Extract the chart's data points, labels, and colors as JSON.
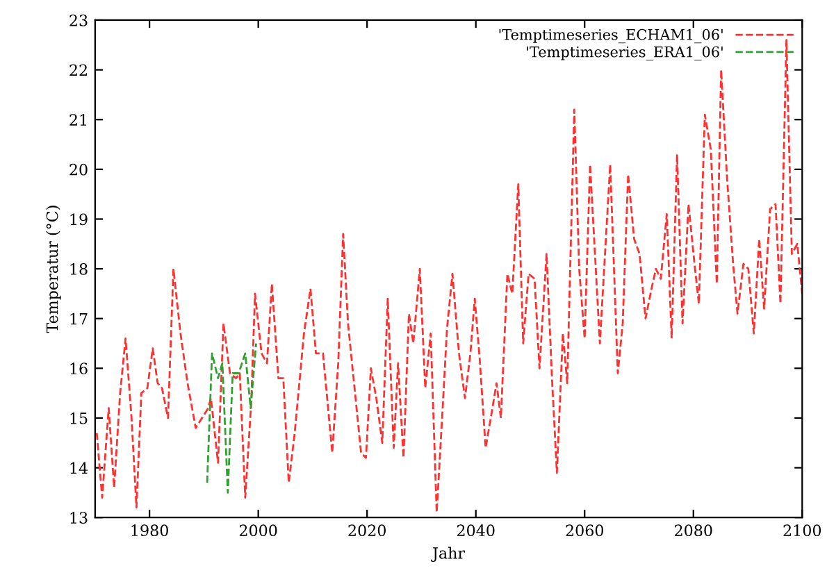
{
  "chart_data": {
    "type": "line",
    "xlabel": "Jahr",
    "ylabel": "Temperatur (°C)",
    "xlim": [
      1970,
      2100
    ],
    "ylim": [
      13,
      23
    ],
    "xticks": [
      1980,
      2000,
      2020,
      2040,
      2060,
      2080,
      2100
    ],
    "yticks": [
      13,
      14,
      15,
      16,
      17,
      18,
      19,
      20,
      21,
      22,
      23
    ],
    "grid": false,
    "legend": "top right",
    "line_style": "dashed",
    "marker": "none",
    "series": [
      {
        "name": "'Temptimeseries_ECHAM1_06'",
        "color": "#ff3030",
        "x": [
          1970.3,
          1971.3,
          1972.5,
          1973.5,
          1974.6,
          1975.6,
          1976.7,
          1977.6,
          1978.5,
          1979.6,
          1980.6,
          1981.5,
          1982.3,
          1983.4,
          1984.4,
          1985.7,
          1987,
          1988.5,
          1990.8,
          1991.3,
          1992.6,
          1993.6,
          1994.8,
          1995.9,
          1996.6,
          1997.6,
          1998.7,
          1999.4,
          2000.6,
          2001.6,
          2002.5,
          2003.7,
          2004.6,
          2005.6,
          2006.7,
          2008.4,
          2009.6,
          2010.6,
          2011.9,
          2013.6,
          2014.7,
          2015.6,
          2016.5,
          2018.9,
          2019.8,
          2020.7,
          2021.7,
          2022.8,
          2023.8,
          2024.9,
          2025.7,
          2026.7,
          2027.7,
          2028.5,
          2029.7,
          2030.7,
          2031.7,
          2032.8,
          2033.9,
          2034.7,
          2035.7,
          2036.9,
          2038,
          2039,
          2039.8,
          2040.7,
          2041.8,
          2042.9,
          2043.8,
          2044.6,
          2045.8,
          2046.7,
          2047.8,
          2048.7,
          2049.7,
          2050.8,
          2051.7,
          2053,
          2054,
          2054.9,
          2056,
          2056.8,
          2058.1,
          2059,
          2060,
          2061,
          2062.8,
          2064.7,
          2066.1,
          2067,
          2068,
          2069.1,
          2070.1,
          2071.2,
          2072.3,
          2073.1,
          2074,
          2075.1,
          2076,
          2077,
          2078,
          2079.1,
          2080.2,
          2081,
          2082.1,
          2083.2,
          2084.3,
          2085.1,
          2086.2,
          2087.3,
          2088.1,
          2089.2,
          2090.1,
          2091.1,
          2092.1,
          2093,
          2094.1,
          2095.1,
          2096,
          2097.1,
          2098.1,
          2099.1,
          2100
        ],
        "values": [
          14.7,
          13.4,
          15.2,
          13.6,
          15.5,
          16.6,
          15.0,
          13.2,
          15.5,
          15.6,
          16.4,
          15.7,
          15.6,
          15.0,
          18.0,
          16.7,
          15.7,
          14.8,
          15.2,
          15.4,
          14.1,
          16.9,
          15.9,
          15.8,
          15.9,
          13.4,
          15.3,
          17.5,
          16.3,
          16.1,
          17.7,
          15.8,
          15.8,
          13.7,
          14.7,
          16.7,
          17.6,
          16.3,
          16.3,
          14.3,
          16.1,
          18.7,
          16.9,
          14.3,
          14.2,
          16.0,
          15.4,
          14.5,
          17.4,
          14.4,
          16.1,
          14.2,
          17.1,
          16.5,
          18.0,
          15.6,
          16.7,
          13.1,
          15.2,
          16.8,
          17.9,
          16.3,
          15.4,
          16.3,
          17.4,
          16.2,
          14.4,
          15.1,
          15.7,
          15.0,
          17.9,
          17.5,
          19.7,
          16.5,
          17.9,
          17.8,
          16.0,
          18.3,
          15.8,
          13.9,
          16.7,
          15.7,
          21.2,
          18.0,
          16.6,
          20.1,
          16.5,
          20.1,
          15.9,
          16.9,
          19.9,
          18.6,
          18.3,
          17.0,
          17.6,
          18.0,
          17.8,
          19.1,
          16.6,
          20.3,
          16.9,
          19.3,
          18.1,
          17.3,
          21.1,
          20.4,
          17.7,
          22.0,
          19.8,
          18.1,
          17.1,
          18.1,
          18.0,
          16.7,
          18.6,
          17.2,
          19.2,
          19.3,
          17.3,
          22.6,
          18.3,
          18.5,
          17.5
        ]
      },
      {
        "name": "'Temptimeseries_ERA1_06'",
        "color": "#30a030",
        "x": [
          1990.6,
          1991.5,
          1992.6,
          1993.4,
          1994.4,
          1995.3,
          1996.4,
          1997.6,
          1998.6,
          1999.6
        ],
        "values": [
          13.7,
          16.3,
          15.8,
          16.1,
          13.5,
          15.9,
          15.9,
          16.3,
          15.2,
          16.5
        ]
      }
    ]
  }
}
